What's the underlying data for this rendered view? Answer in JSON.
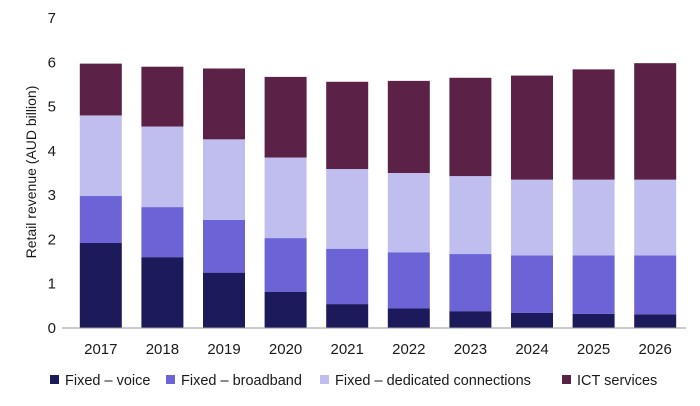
{
  "chart_data": {
    "type": "bar",
    "stacked": true,
    "title": "",
    "xlabel": "",
    "ylabel": "Retail revenue (AUD billion)",
    "ylim": [
      0,
      7
    ],
    "yticks": [
      0,
      1,
      2,
      3,
      4,
      5,
      6,
      7
    ],
    "grid": false,
    "legend_position": "bottom",
    "categories": [
      "2017",
      "2018",
      "2019",
      "2020",
      "2021",
      "2022",
      "2023",
      "2024",
      "2025",
      "2026"
    ],
    "series": [
      {
        "name": "Fixed – voice",
        "color": "#1c1a5a",
        "values": [
          1.92,
          1.6,
          1.25,
          0.82,
          0.54,
          0.44,
          0.38,
          0.34,
          0.32,
          0.31
        ]
      },
      {
        "name": "Fixed – broadband",
        "color": "#6b63d6",
        "values": [
          1.06,
          1.13,
          1.19,
          1.21,
          1.25,
          1.27,
          1.29,
          1.3,
          1.32,
          1.33
        ]
      },
      {
        "name": "Fixed – dedicated connections",
        "color": "#c0bdef",
        "values": [
          1.82,
          1.82,
          1.82,
          1.82,
          1.8,
          1.79,
          1.76,
          1.71,
          1.71,
          1.71
        ]
      },
      {
        "name": "ICT services",
        "color": "#5c2147",
        "values": [
          1.17,
          1.35,
          1.6,
          1.82,
          1.97,
          2.08,
          2.22,
          2.35,
          2.49,
          2.63
        ]
      }
    ]
  }
}
